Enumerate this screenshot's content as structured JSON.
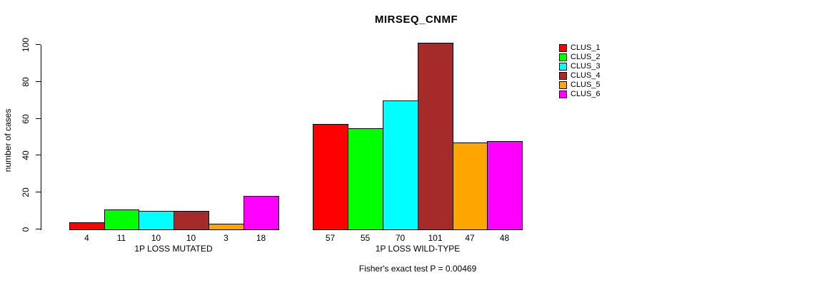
{
  "title": "MIRSEQ_CNMF",
  "footer": "Fisher's exact test P = 0.00469",
  "chart_data": {
    "type": "bar",
    "title": "MIRSEQ_CNMF",
    "xlabel": "",
    "ylabel": "number of cases",
    "ylim": [
      0,
      100
    ],
    "yticks": [
      0,
      20,
      40,
      60,
      80,
      100
    ],
    "grid": false,
    "legend_position": "right-outside",
    "bar_value_labels_shown": true,
    "series": [
      {
        "name": "CLUS_1",
        "color": "#FF0000"
      },
      {
        "name": "CLUS_2",
        "color": "#00FF00"
      },
      {
        "name": "CLUS_3",
        "color": "#00FFFF"
      },
      {
        "name": "CLUS_4",
        "color": "#A52A2A"
      },
      {
        "name": "CLUS_5",
        "color": "#FFA500"
      },
      {
        "name": "CLUS_6",
        "color": "#FF00FF"
      }
    ],
    "groups": [
      {
        "label": "1P LOSS MUTATED",
        "values": [
          4,
          11,
          10,
          10,
          3,
          18
        ]
      },
      {
        "label": "1P LOSS WILD-TYPE",
        "values": [
          57,
          55,
          70,
          101,
          47,
          48
        ]
      }
    ],
    "annotation": "Fisher's exact test P = 0.00469"
  }
}
